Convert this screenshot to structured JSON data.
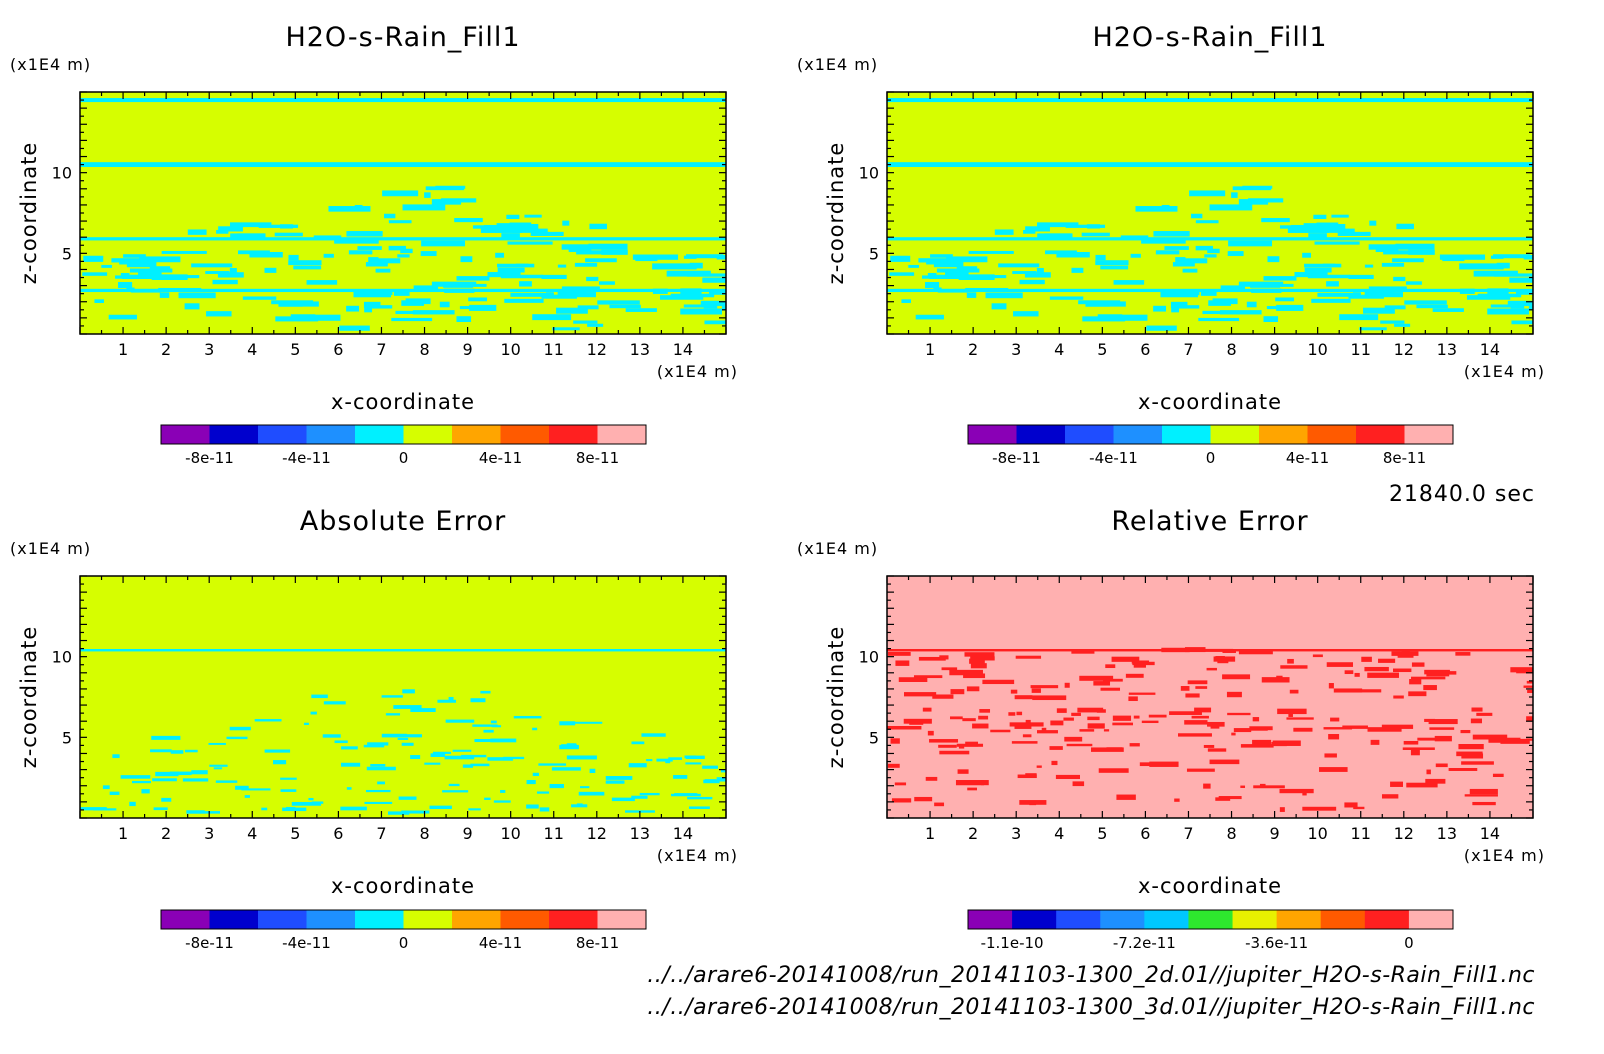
{
  "window": {
    "time_label": "21840.0 sec"
  },
  "chart_data": [
    {
      "type": "heatmap",
      "title": "H2O-s-Rain_Fill1",
      "xlabel": "x-coordinate",
      "ylabel": "z-coordinate",
      "x_unit": "(x1E4 m)",
      "y_unit": "(x1E4 m)",
      "xlim": [
        0,
        15
      ],
      "ylim": [
        0,
        15
      ],
      "x_ticks": [
        "1",
        "2",
        "3",
        "4",
        "5",
        "6",
        "7",
        "8",
        "9",
        "10",
        "11",
        "12",
        "13",
        "14"
      ],
      "y_ticks": [
        "5",
        "10"
      ],
      "background_color": "#d6fe00",
      "feature_color": "#00f0ff",
      "colorbar": {
        "colors": [
          "#8a00b6",
          "#0000cd",
          "#1f4dff",
          "#1e90ff",
          "#00f0ff",
          "#d6fe00",
          "#ffa500",
          "#ff5a00",
          "#ff2020",
          "#ffb0b0"
        ],
        "tick_labels": [
          "-8e-11",
          "-4e-11",
          "0",
          "4e-11",
          "8e-11"
        ]
      }
    },
    {
      "type": "heatmap",
      "title": "H2O-s-Rain_Fill1",
      "xlabel": "x-coordinate",
      "ylabel": "z-coordinate",
      "x_unit": "(x1E4 m)",
      "y_unit": "(x1E4 m)",
      "xlim": [
        0,
        15
      ],
      "ylim": [
        0,
        15
      ],
      "x_ticks": [
        "1",
        "2",
        "3",
        "4",
        "5",
        "6",
        "7",
        "8",
        "9",
        "10",
        "11",
        "12",
        "13",
        "14"
      ],
      "y_ticks": [
        "5",
        "10"
      ],
      "background_color": "#d6fe00",
      "feature_color": "#00f0ff",
      "colorbar": {
        "colors": [
          "#8a00b6",
          "#0000cd",
          "#1f4dff",
          "#1e90ff",
          "#00f0ff",
          "#d6fe00",
          "#ffa500",
          "#ff5a00",
          "#ff2020",
          "#ffb0b0"
        ],
        "tick_labels": [
          "-8e-11",
          "-4e-11",
          "0",
          "4e-11",
          "8e-11"
        ]
      }
    },
    {
      "type": "heatmap",
      "title": "Absolute Error",
      "xlabel": "x-coordinate",
      "ylabel": "z-coordinate",
      "x_unit": "(x1E4 m)",
      "y_unit": "(x1E4 m)",
      "xlim": [
        0,
        15
      ],
      "ylim": [
        0,
        15
      ],
      "x_ticks": [
        "1",
        "2",
        "3",
        "4",
        "5",
        "6",
        "7",
        "8",
        "9",
        "10",
        "11",
        "12",
        "13",
        "14"
      ],
      "y_ticks": [
        "5",
        "10"
      ],
      "background_color": "#d6fe00",
      "feature_color": "#00f0ff",
      "colorbar": {
        "colors": [
          "#8a00b6",
          "#0000cd",
          "#1f4dff",
          "#1e90ff",
          "#00f0ff",
          "#d6fe00",
          "#ffa500",
          "#ff5a00",
          "#ff2020",
          "#ffb0b0"
        ],
        "tick_labels": [
          "-8e-11",
          "-4e-11",
          "0",
          "4e-11",
          "8e-11"
        ]
      }
    },
    {
      "type": "heatmap",
      "title": "Relative Error",
      "xlabel": "x-coordinate",
      "ylabel": "z-coordinate",
      "x_unit": "(x1E4 m)",
      "y_unit": "(x1E4 m)",
      "xlim": [
        0,
        15
      ],
      "ylim": [
        0,
        15
      ],
      "x_ticks": [
        "1",
        "2",
        "3",
        "4",
        "5",
        "6",
        "7",
        "8",
        "9",
        "10",
        "11",
        "12",
        "13",
        "14"
      ],
      "y_ticks": [
        "5",
        "10"
      ],
      "background_color": "#ffb0b0",
      "feature_color": "#ff2020",
      "colorbar": {
        "colors": [
          "#8a00b6",
          "#0000cd",
          "#1f4dff",
          "#1e90ff",
          "#00c8ff",
          "#2ee82e",
          "#e8f000",
          "#ffa500",
          "#ff5a00",
          "#ff2020",
          "#ffb0b0"
        ],
        "tick_labels": [
          "-1.1e-10",
          "-7.2e-11",
          "-3.6e-11",
          "0"
        ]
      }
    }
  ],
  "footer": {
    "file_2d": "../../arare6-20141008/run_20141103-1300_2d.01//jupiter_H2O-s-Rain_Fill1.nc",
    "file_3d": "../../arare6-20141008/run_20141103-1300_3d.01//jupiter_H2O-s-Rain_Fill1.nc"
  }
}
